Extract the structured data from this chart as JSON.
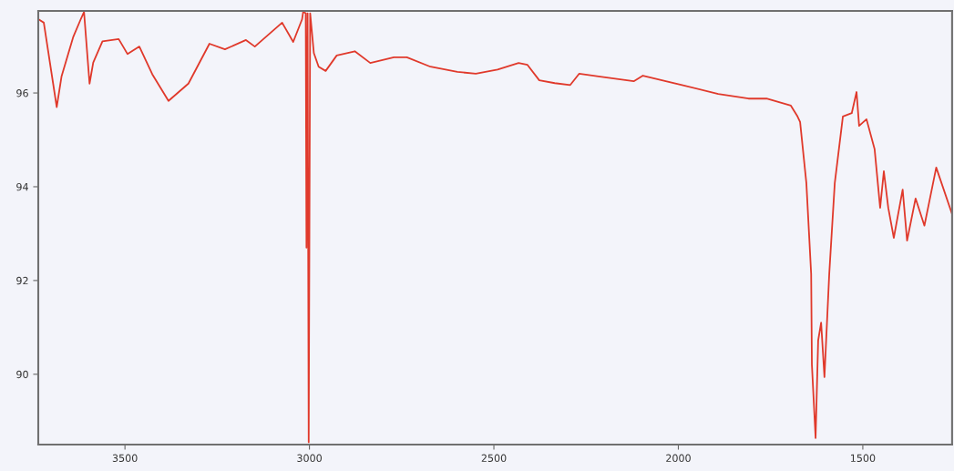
{
  "chart_data": {
    "type": "line",
    "xlim": [
      3735,
      1258
    ],
    "ylim": [
      88.5,
      97.75
    ],
    "xticks": [
      3500,
      3000,
      2500,
      2000,
      1500
    ],
    "yticks": [
      90,
      92,
      94,
      96
    ],
    "grid": false,
    "legend": false,
    "marker": "none",
    "line_style": "solid",
    "x": [
      3734,
      3720,
      3685,
      3672,
      3640,
      3620,
      3611,
      3596,
      3586,
      3561,
      3517,
      3493,
      3461,
      3426,
      3382,
      3328,
      3271,
      3229,
      3172,
      3148,
      3074,
      3044,
      3020,
      3017,
      3010,
      3008,
      3005,
      3002,
      2998,
      2988,
      2975,
      2956,
      2926,
      2877,
      2835,
      2771,
      2736,
      2672,
      2599,
      2549,
      2490,
      2433,
      2409,
      2377,
      2335,
      2293,
      2269,
      2212,
      2121,
      2096,
      1990,
      1892,
      1810,
      1761,
      1695,
      1677,
      1670,
      1653,
      1640,
      1638,
      1628,
      1621,
      1613,
      1604,
      1591,
      1576,
      1554,
      1530,
      1517,
      1510,
      1490,
      1468,
      1453,
      1443,
      1431,
      1416,
      1392,
      1380,
      1357,
      1333,
      1301,
      1259
    ],
    "series": [
      {
        "color": "#e0392b",
        "values": [
          97.57,
          97.5,
          95.7,
          96.35,
          97.2,
          97.57,
          97.73,
          96.2,
          96.65,
          97.1,
          97.15,
          96.83,
          96.99,
          96.4,
          95.83,
          96.2,
          97.05,
          96.93,
          97.13,
          96.99,
          97.5,
          97.09,
          97.57,
          97.73,
          97.7,
          92.7,
          97.7,
          88.55,
          97.7,
          96.85,
          96.56,
          96.47,
          96.8,
          96.89,
          96.64,
          96.76,
          96.76,
          96.56,
          96.45,
          96.41,
          96.5,
          96.64,
          96.6,
          96.27,
          96.21,
          96.17,
          96.41,
          96.35,
          96.25,
          96.37,
          96.17,
          95.98,
          95.88,
          95.88,
          95.73,
          95.5,
          95.38,
          94.08,
          92.14,
          90.2,
          88.64,
          90.72,
          91.1,
          89.94,
          92.14,
          94.08,
          95.5,
          95.57,
          96.02,
          95.3,
          95.44,
          94.8,
          93.55,
          94.33,
          93.55,
          92.91,
          93.94,
          92.85,
          93.75,
          93.17,
          94.41,
          93.44
        ]
      }
    ]
  }
}
